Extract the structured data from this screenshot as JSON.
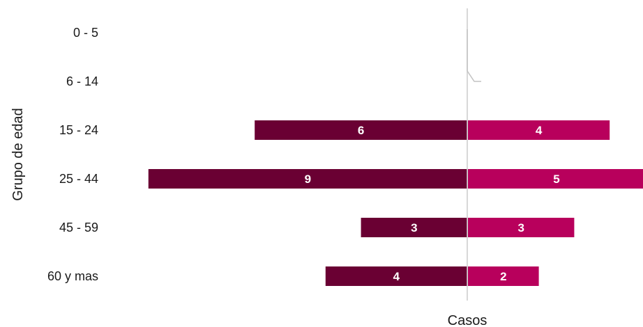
{
  "chart_data": {
    "type": "bar",
    "orientation": "horizontal-diverging",
    "categories": [
      "0 - 5",
      "6 - 14",
      "15 - 24",
      "25 - 44",
      "45 - 59",
      "60 y mas"
    ],
    "series": [
      {
        "values": [
          0,
          0,
          6,
          9,
          3,
          4
        ],
        "color": "#6a0033"
      },
      {
        "values": [
          0,
          0,
          4,
          5,
          3,
          2
        ],
        "color": "#b8005c"
      }
    ],
    "xlabel": "Casos",
    "ylabel": "Grupo de edad",
    "xlim": [
      -9,
      5
    ],
    "grid": false,
    "legend": "none"
  }
}
